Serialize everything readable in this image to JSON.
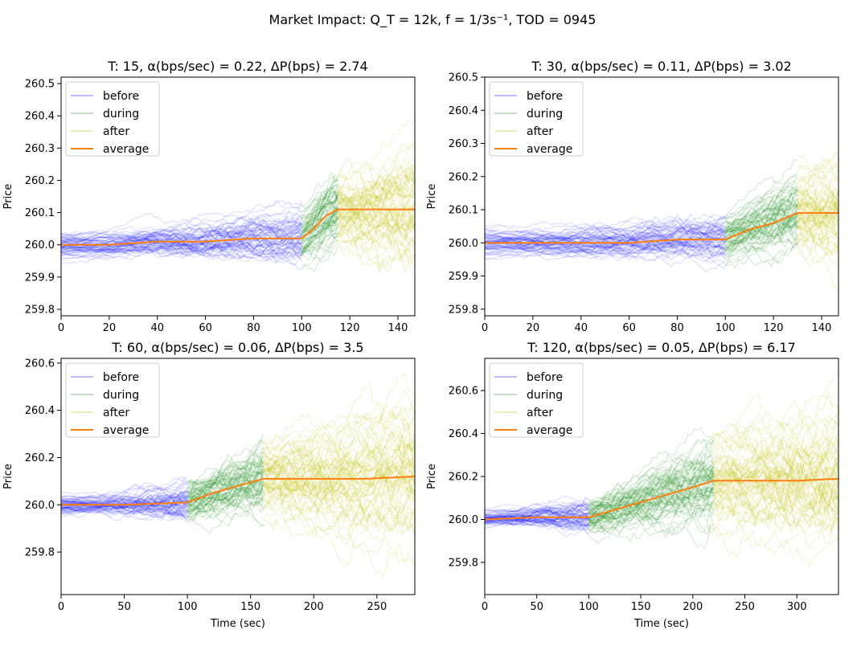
{
  "figure": {
    "suptitle": "Market Impact: $Q_T = 12k, f = 1/3s^{-1}, TOD = 0945$",
    "suptitle_display": "Market Impact: Q_T = 12k, f = 1/3s⁻¹, TOD = 0945"
  },
  "colors": {
    "before": "#0000ff",
    "during": "#118811",
    "after": "#bbbb00",
    "average": "#ff7f0e"
  },
  "chart_data": [
    {
      "type": "line",
      "title": "T: 15, α(bps/sec) = 0.22, ΔP(bps) = 2.74",
      "xlabel": "",
      "ylabel": "Price",
      "xlim": [
        0,
        147
      ],
      "ylim": [
        259.78,
        260.52
      ],
      "xticks": [
        "0",
        "20",
        "40",
        "60",
        "80",
        "100",
        "120",
        "140"
      ],
      "yticks": [
        "259.8",
        "259.9",
        "260.0",
        "260.1",
        "260.2",
        "260.3",
        "260.4",
        "260.5"
      ],
      "legend": [
        "before",
        "during",
        "after",
        "average"
      ],
      "legend_position": "upper-left",
      "phases": {
        "before": [
          0,
          100
        ],
        "during": [
          100,
          115
        ],
        "after": [
          115,
          147
        ]
      },
      "series": [
        {
          "name": "average",
          "x": [
            0,
            20,
            40,
            60,
            80,
            100,
            105,
            110,
            115,
            130,
            147
          ],
          "values": [
            260.0,
            260.0,
            260.01,
            260.01,
            260.02,
            260.02,
            260.05,
            260.09,
            260.11,
            260.11,
            260.11
          ]
        }
      ],
      "spread": {
        "before_end": 0.12,
        "during_end": 0.2,
        "after_end": 0.26
      }
    },
    {
      "type": "line",
      "title": "T: 30, α(bps/sec) = 0.11, ΔP(bps) = 3.02",
      "xlabel": "",
      "ylabel": "Price",
      "xlim": [
        0,
        147
      ],
      "ylim": [
        259.78,
        260.5
      ],
      "xticks": [
        "0",
        "20",
        "40",
        "60",
        "80",
        "100",
        "120",
        "140"
      ],
      "yticks": [
        "259.8",
        "259.9",
        "260.0",
        "260.1",
        "260.2",
        "260.3",
        "260.4",
        "260.5"
      ],
      "legend": [
        "before",
        "during",
        "after",
        "average"
      ],
      "legend_position": "upper-left",
      "phases": {
        "before": [
          0,
          100
        ],
        "during": [
          100,
          130
        ],
        "after": [
          130,
          147
        ]
      },
      "series": [
        {
          "name": "average",
          "x": [
            0,
            20,
            40,
            60,
            80,
            100,
            110,
            120,
            130,
            140,
            147
          ],
          "values": [
            260.0,
            260.0,
            260.0,
            260.0,
            260.01,
            260.01,
            260.04,
            260.06,
            260.09,
            260.09,
            260.09
          ]
        }
      ],
      "spread": {
        "before_end": 0.1,
        "during_end": 0.18,
        "after_end": 0.24
      }
    },
    {
      "type": "line",
      "title": "T: 60, α(bps/sec) = 0.06, ΔP(bps) = 3.5",
      "xlabel": "Time (sec)",
      "ylabel": "Price",
      "xlim": [
        0,
        280
      ],
      "ylim": [
        259.62,
        260.62
      ],
      "xticks": [
        "0",
        "50",
        "100",
        "150",
        "200",
        "250"
      ],
      "yticks": [
        "259.8",
        "260.0",
        "260.2",
        "260.4",
        "260.6"
      ],
      "legend": [
        "before",
        "during",
        "after",
        "average"
      ],
      "legend_position": "upper-left",
      "phases": {
        "before": [
          0,
          100
        ],
        "during": [
          100,
          160
        ],
        "after": [
          160,
          280
        ]
      },
      "series": [
        {
          "name": "average",
          "x": [
            0,
            50,
            100,
            120,
            140,
            160,
            200,
            240,
            280
          ],
          "values": [
            260.0,
            260.0,
            260.01,
            260.05,
            260.08,
            260.11,
            260.11,
            260.11,
            260.12
          ]
        }
      ],
      "spread": {
        "before_end": 0.15,
        "during_end": 0.25,
        "after_end": 0.38
      }
    },
    {
      "type": "line",
      "title": "T: 120, α(bps/sec) = 0.05, ΔP(bps) = 6.17",
      "xlabel": "Time (sec)",
      "ylabel": "Price",
      "xlim": [
        0,
        340
      ],
      "ylim": [
        259.65,
        260.75
      ],
      "xticks": [
        "0",
        "50",
        "100",
        "150",
        "200",
        "250",
        "300"
      ],
      "yticks": [
        "259.8",
        "260.0",
        "260.2",
        "260.4",
        "260.6"
      ],
      "legend": [
        "before",
        "during",
        "after",
        "average"
      ],
      "legend_position": "upper-left",
      "phases": {
        "before": [
          0,
          100
        ],
        "during": [
          100,
          220
        ],
        "after": [
          220,
          340
        ]
      },
      "series": [
        {
          "name": "average",
          "x": [
            0,
            50,
            100,
            150,
            200,
            220,
            260,
            300,
            340
          ],
          "values": [
            260.0,
            260.01,
            260.01,
            260.08,
            260.15,
            260.18,
            260.18,
            260.18,
            260.19
          ]
        }
      ],
      "spread": {
        "before_end": 0.15,
        "during_end": 0.3,
        "after_end": 0.45
      }
    }
  ]
}
